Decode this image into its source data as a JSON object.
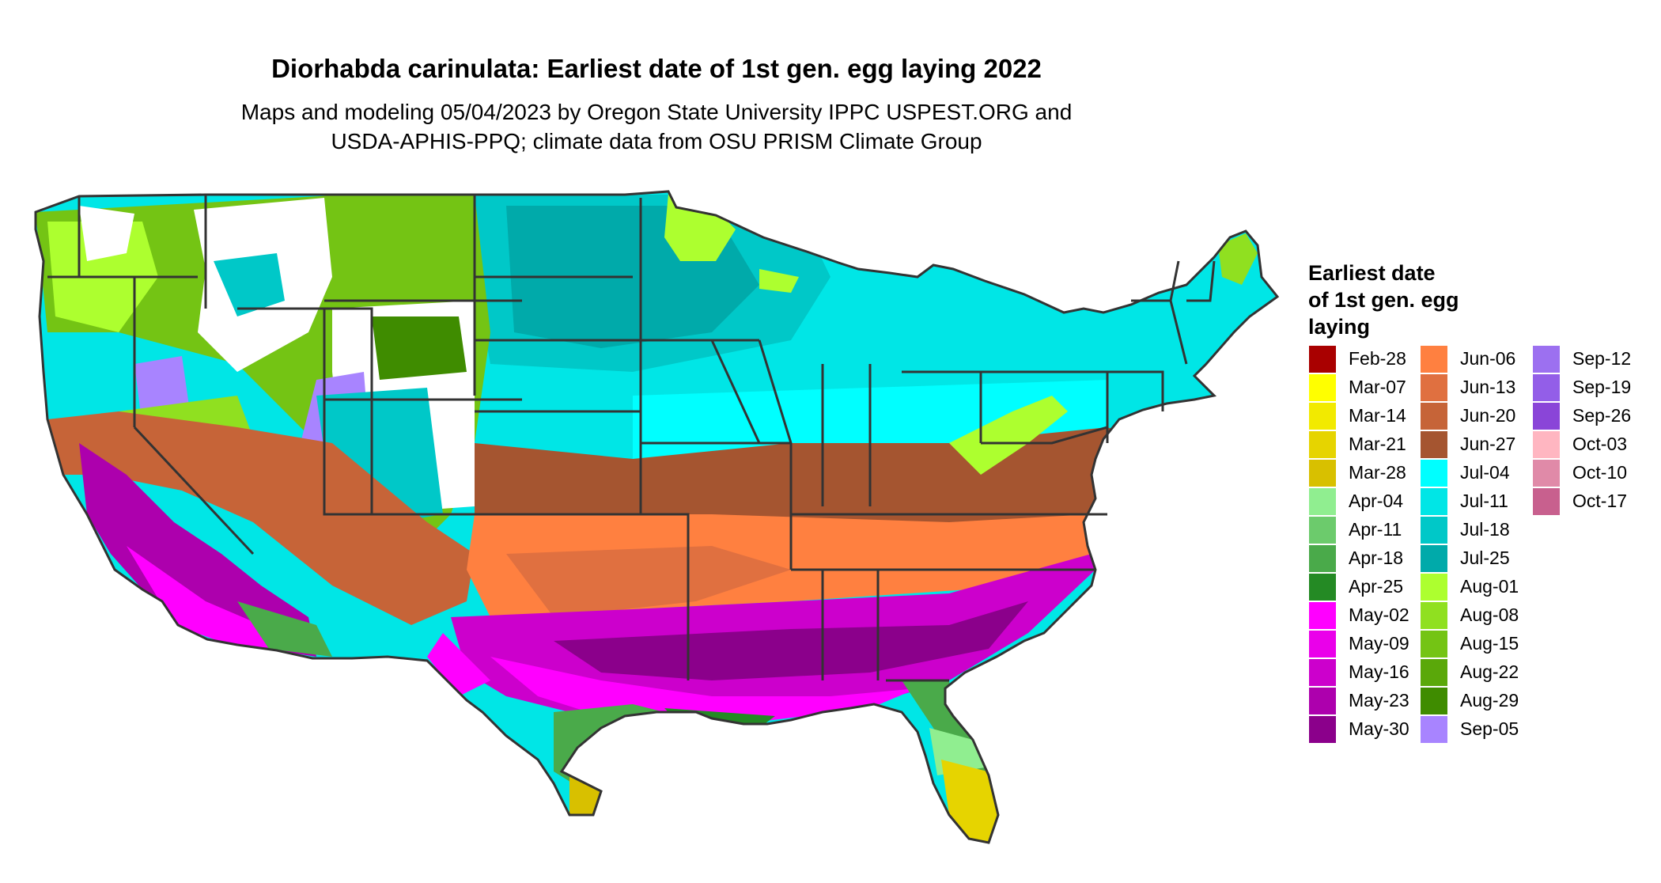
{
  "title": "Diorhabda carinulata: Earliest date of 1st gen. egg laying 2022",
  "subtitle_line1": "Maps and modeling 05/04/2023 by Oregon State University IPPC USPEST.ORG and",
  "subtitle_line2": "USDA-APHIS-PPQ; climate data from OSU PRISM Climate Group",
  "legend": {
    "title_lines": [
      "Earliest date",
      "of 1st gen. egg",
      "laying"
    ],
    "items": [
      {
        "label": "Feb-28",
        "color": "#a90000"
      },
      {
        "label": "Mar-07",
        "color": "#ffff00"
      },
      {
        "label": "Mar-14",
        "color": "#f2ea00"
      },
      {
        "label": "Mar-21",
        "color": "#e6d400"
      },
      {
        "label": "Mar-28",
        "color": "#d8c000"
      },
      {
        "label": "Apr-04",
        "color": "#90ee90"
      },
      {
        "label": "Apr-11",
        "color": "#6ccb6c"
      },
      {
        "label": "Apr-18",
        "color": "#4aaa4a"
      },
      {
        "label": "Apr-25",
        "color": "#248a24"
      },
      {
        "label": "May-02",
        "color": "#ff00ff"
      },
      {
        "label": "May-09",
        "color": "#ea00ea"
      },
      {
        "label": "May-16",
        "color": "#cc00cc"
      },
      {
        "label": "May-23",
        "color": "#ad00ad"
      },
      {
        "label": "May-30",
        "color": "#8b008b"
      },
      {
        "label": "Jun-06",
        "color": "#ff8040"
      },
      {
        "label": "Jun-13",
        "color": "#e07040"
      },
      {
        "label": "Jun-20",
        "color": "#c66438"
      },
      {
        "label": "Jun-27",
        "color": "#a55530"
      },
      {
        "label": "Jul-04",
        "color": "#00ffff"
      },
      {
        "label": "Jul-11",
        "color": "#00e6e6"
      },
      {
        "label": "Jul-18",
        "color": "#00c8c8"
      },
      {
        "label": "Jul-25",
        "color": "#00aaaa"
      },
      {
        "label": "Aug-01",
        "color": "#adff2f"
      },
      {
        "label": "Aug-08",
        "color": "#90e020"
      },
      {
        "label": "Aug-15",
        "color": "#74c414"
      },
      {
        "label": "Aug-22",
        "color": "#5aa80a"
      },
      {
        "label": "Aug-29",
        "color": "#3f8c00"
      },
      {
        "label": "Sep-05",
        "color": "#a884ff"
      },
      {
        "label": "Sep-12",
        "color": "#9c70f0"
      },
      {
        "label": "Sep-19",
        "color": "#935ee8"
      },
      {
        "label": "Sep-26",
        "color": "#8a45d8"
      },
      {
        "label": "Oct-03",
        "color": "#ffb6c1"
      },
      {
        "label": "Oct-10",
        "color": "#e08aa8"
      },
      {
        "label": "Oct-17",
        "color": "#c8608e"
      }
    ]
  }
}
